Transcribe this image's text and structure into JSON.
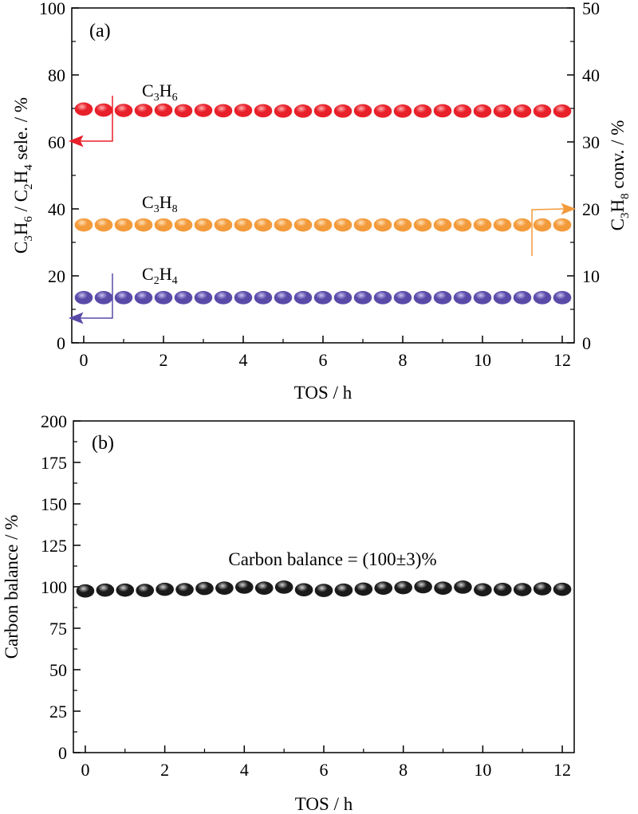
{
  "chart_data": [
    {
      "type": "scatter",
      "panel_label": "(a)",
      "xlabel": "TOS / h",
      "xlim": [
        -0.3,
        12.3
      ],
      "x_ticks": [
        0,
        2,
        4,
        6,
        8,
        10,
        12
      ],
      "ylabel_left": {
        "c1": "C",
        "s1": "3",
        "c2": "H",
        "s2": "6",
        "c3": " / C",
        "s3": "2",
        "c4": "H",
        "s4": "4",
        "c5": " sele. / %"
      },
      "ylim_left": [
        0,
        100
      ],
      "y_ticks_left": [
        0,
        20,
        40,
        60,
        80,
        100
      ],
      "ylabel_right": {
        "c1": "C",
        "s1": "3",
        "c2": "H",
        "s2": "8",
        "c3": " conv. / %"
      },
      "ylim_right": [
        0,
        50
      ],
      "y_ticks_right": [
        0,
        10,
        20,
        30,
        40,
        50
      ],
      "x": [
        0,
        0.5,
        1,
        1.5,
        2,
        2.5,
        3,
        3.5,
        4,
        4.5,
        5,
        5.5,
        6,
        6.5,
        7,
        7.5,
        8,
        8.5,
        9,
        9.5,
        10,
        10.5,
        11,
        11.5,
        12
      ],
      "series": [
        {
          "label": {
            "c1": "C",
            "s1": "3",
            "c2": "H",
            "s2": "6"
          },
          "axis": "left",
          "color": "#e8202a",
          "highlight": "#ffb0b0",
          "values": [
            69.8,
            69.5,
            69.4,
            69.4,
            69.5,
            69.3,
            69.4,
            69.3,
            69.4,
            69.3,
            69.2,
            69.2,
            69.3,
            69.2,
            69.3,
            69.2,
            69.2,
            69.2,
            69.3,
            69.2,
            69.2,
            69.2,
            69.2,
            69.2,
            69.2
          ]
        },
        {
          "label": {
            "c1": "C",
            "s1": "3",
            "c2": "H",
            "s2": "8"
          },
          "axis": "right",
          "color": "#f39a3a",
          "highlight": "#ffe0b8",
          "values": [
            17.6,
            17.6,
            17.6,
            17.6,
            17.6,
            17.6,
            17.6,
            17.6,
            17.6,
            17.6,
            17.6,
            17.6,
            17.6,
            17.6,
            17.6,
            17.6,
            17.6,
            17.6,
            17.6,
            17.6,
            17.6,
            17.6,
            17.6,
            17.6,
            17.6
          ]
        },
        {
          "label": {
            "c1": "C",
            "s1": "2",
            "c2": "H",
            "s2": "4"
          },
          "axis": "left",
          "color": "#5a4aa8",
          "highlight": "#c8c0f0",
          "values": [
            13.5,
            13.5,
            13.5,
            13.5,
            13.5,
            13.5,
            13.5,
            13.5,
            13.5,
            13.5,
            13.5,
            13.5,
            13.5,
            13.5,
            13.5,
            13.5,
            13.5,
            13.5,
            13.5,
            13.5,
            13.5,
            13.5,
            13.5,
            13.5,
            13.5
          ]
        }
      ]
    },
    {
      "type": "scatter",
      "panel_label": "(b)",
      "xlabel": "TOS / h",
      "xlim": [
        -0.3,
        12.3
      ],
      "x_ticks": [
        0,
        2,
        4,
        6,
        8,
        10,
        12
      ],
      "ylabel": "Carbon balance / %",
      "ylim": [
        0,
        200
      ],
      "y_ticks": [
        0,
        25,
        50,
        75,
        100,
        125,
        150,
        175,
        200
      ],
      "annotation": "Carbon balance = (100±3)%",
      "x": [
        0,
        0.5,
        1,
        1.5,
        2,
        2.5,
        3,
        3.5,
        4,
        4.5,
        5,
        5.5,
        6,
        6.5,
        7,
        7.5,
        8,
        8.5,
        9,
        9.5,
        10,
        10.5,
        11,
        11.5,
        12
      ],
      "series": [
        {
          "color": "#1a1a1a",
          "highlight": "#d0d0d0",
          "values": [
            97.5,
            98,
            98,
            97.8,
            98.5,
            98.3,
            99,
            99.2,
            99.8,
            99.2,
            99.8,
            98.2,
            97.8,
            98,
            98.6,
            99.2,
            99.5,
            100,
            99.2,
            99.8,
            98.2,
            98.4,
            98.3,
            98.8,
            98.5
          ]
        }
      ]
    }
  ]
}
